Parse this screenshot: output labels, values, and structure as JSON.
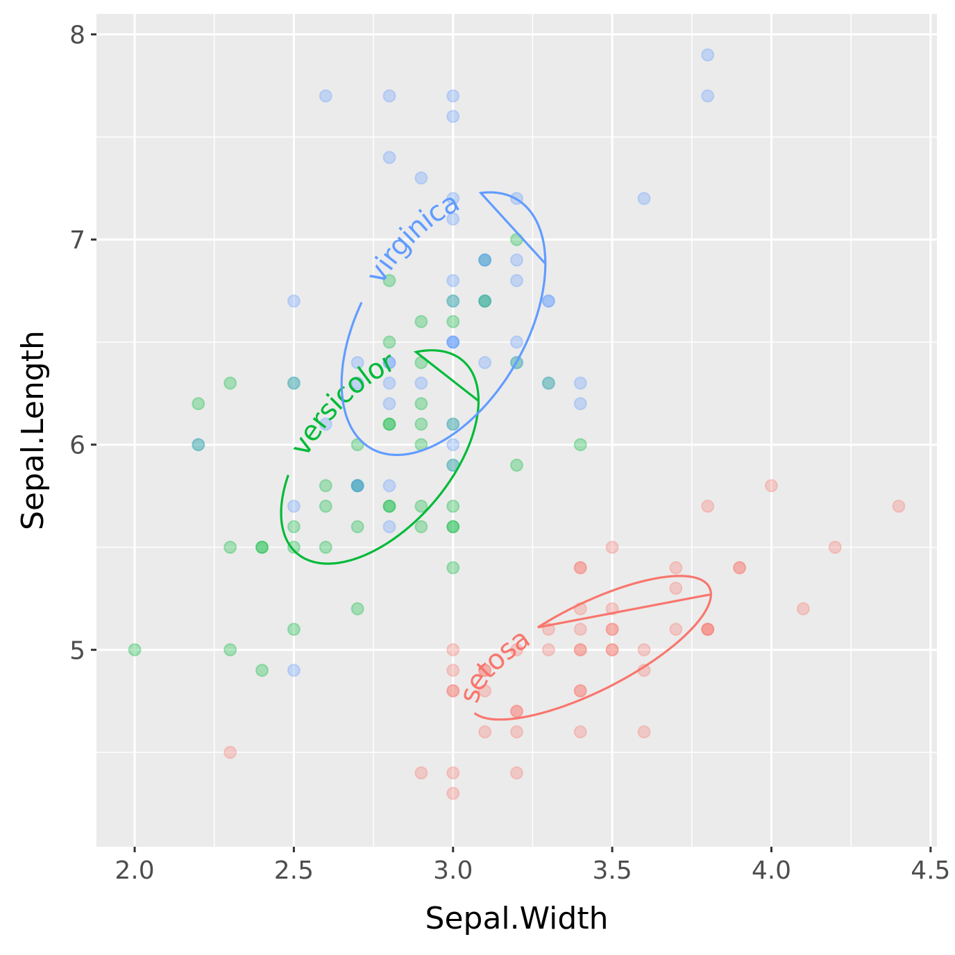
{
  "chart_data": {
    "type": "scatter",
    "xlabel": "Sepal.Width",
    "ylabel": "Sepal.Length",
    "xlim": [
      1.88,
      4.52
    ],
    "ylim": [
      4.04,
      8.1
    ],
    "x_ticks": [
      2.0,
      2.5,
      3.0,
      3.5,
      4.0,
      4.5
    ],
    "x_tick_labels": [
      "2.0",
      "2.5",
      "3.0",
      "3.5",
      "4.0",
      "4.5"
    ],
    "y_ticks": [
      5,
      6,
      7,
      8
    ],
    "y_tick_labels": [
      "5",
      "6",
      "7",
      "8"
    ],
    "grid": true,
    "legend": "none",
    "series": [
      {
        "name": "setosa",
        "color": "#F8766D",
        "label_text": "setosa",
        "ellipse": {
          "center": [
            3.43,
            5.01
          ],
          "rx": 0.38,
          "ry": 0.35,
          "r": 0.743
        },
        "points": [
          [
            3.5,
            5.1
          ],
          [
            3.0,
            4.9
          ],
          [
            3.2,
            4.7
          ],
          [
            3.1,
            4.6
          ],
          [
            3.6,
            5.0
          ],
          [
            3.9,
            5.4
          ],
          [
            3.4,
            4.6
          ],
          [
            3.4,
            5.0
          ],
          [
            2.9,
            4.4
          ],
          [
            3.1,
            4.9
          ],
          [
            3.7,
            5.4
          ],
          [
            3.4,
            4.8
          ],
          [
            3.0,
            4.8
          ],
          [
            3.0,
            4.3
          ],
          [
            4.0,
            5.8
          ],
          [
            4.4,
            5.7
          ],
          [
            3.9,
            5.4
          ],
          [
            3.5,
            5.1
          ],
          [
            3.8,
            5.7
          ],
          [
            3.8,
            5.1
          ],
          [
            3.4,
            5.4
          ],
          [
            3.7,
            5.1
          ],
          [
            3.6,
            4.6
          ],
          [
            3.3,
            5.1
          ],
          [
            3.4,
            4.8
          ],
          [
            3.0,
            5.0
          ],
          [
            3.4,
            5.0
          ],
          [
            3.5,
            5.2
          ],
          [
            3.4,
            5.2
          ],
          [
            3.2,
            4.7
          ],
          [
            3.1,
            4.8
          ],
          [
            3.4,
            5.4
          ],
          [
            4.1,
            5.2
          ],
          [
            4.2,
            5.5
          ],
          [
            3.1,
            4.9
          ],
          [
            3.2,
            5.0
          ],
          [
            3.5,
            5.5
          ],
          [
            3.6,
            4.9
          ],
          [
            3.0,
            4.4
          ],
          [
            3.4,
            5.1
          ],
          [
            3.5,
            5.0
          ],
          [
            2.3,
            4.5
          ],
          [
            3.2,
            4.4
          ],
          [
            3.5,
            5.0
          ],
          [
            3.8,
            5.1
          ],
          [
            3.0,
            4.8
          ],
          [
            3.8,
            5.1
          ],
          [
            3.2,
            4.6
          ],
          [
            3.7,
            5.3
          ],
          [
            3.3,
            5.0
          ]
        ]
      },
      {
        "name": "versicolor",
        "color": "#00BA38",
        "label_text": "versicolor",
        "ellipse": {
          "center": [
            2.77,
            5.94
          ],
          "rx": 0.31,
          "ry": 0.52,
          "r": 0.526
        },
        "points": [
          [
            3.2,
            7.0
          ],
          [
            3.2,
            6.4
          ],
          [
            3.1,
            6.9
          ],
          [
            2.3,
            5.5
          ],
          [
            2.8,
            6.5
          ],
          [
            2.8,
            5.7
          ],
          [
            3.3,
            6.3
          ],
          [
            2.4,
            4.9
          ],
          [
            2.9,
            6.6
          ],
          [
            2.7,
            5.2
          ],
          [
            2.0,
            5.0
          ],
          [
            3.0,
            5.9
          ],
          [
            2.2,
            6.0
          ],
          [
            2.9,
            6.1
          ],
          [
            2.9,
            5.6
          ],
          [
            3.1,
            6.7
          ],
          [
            3.0,
            5.6
          ],
          [
            2.7,
            5.8
          ],
          [
            2.2,
            6.2
          ],
          [
            2.5,
            5.6
          ],
          [
            3.2,
            5.9
          ],
          [
            2.8,
            6.1
          ],
          [
            2.5,
            6.3
          ],
          [
            2.8,
            6.1
          ],
          [
            2.9,
            6.4
          ],
          [
            3.0,
            6.6
          ],
          [
            2.8,
            6.8
          ],
          [
            3.0,
            6.7
          ],
          [
            2.9,
            6.0
          ],
          [
            2.6,
            5.7
          ],
          [
            2.4,
            5.5
          ],
          [
            2.4,
            5.5
          ],
          [
            2.7,
            5.8
          ],
          [
            2.7,
            6.0
          ],
          [
            3.0,
            5.4
          ],
          [
            3.4,
            6.0
          ],
          [
            3.1,
            6.7
          ],
          [
            2.3,
            6.3
          ],
          [
            3.0,
            5.6
          ],
          [
            2.5,
            5.5
          ],
          [
            2.6,
            5.5
          ],
          [
            3.0,
            6.1
          ],
          [
            2.6,
            5.8
          ],
          [
            2.3,
            5.0
          ],
          [
            2.7,
            5.6
          ],
          [
            3.0,
            5.7
          ],
          [
            2.9,
            5.7
          ],
          [
            2.9,
            6.2
          ],
          [
            2.5,
            5.1
          ],
          [
            2.8,
            5.7
          ]
        ]
      },
      {
        "name": "virginica",
        "color": "#619CFF",
        "label_text": "virginica",
        "ellipse": {
          "center": [
            2.97,
            6.59
          ],
          "rx": 0.32,
          "ry": 0.64,
          "r": 0.457
        },
        "points": [
          [
            3.3,
            6.3
          ],
          [
            2.7,
            5.8
          ],
          [
            3.0,
            7.1
          ],
          [
            2.9,
            6.3
          ],
          [
            3.0,
            6.5
          ],
          [
            3.0,
            7.6
          ],
          [
            2.5,
            4.9
          ],
          [
            2.9,
            7.3
          ],
          [
            2.5,
            6.7
          ],
          [
            3.6,
            7.2
          ],
          [
            3.2,
            6.5
          ],
          [
            2.7,
            6.4
          ],
          [
            3.0,
            6.8
          ],
          [
            2.5,
            5.7
          ],
          [
            2.8,
            5.8
          ],
          [
            3.2,
            6.4
          ],
          [
            3.0,
            6.5
          ],
          [
            3.8,
            7.7
          ],
          [
            2.6,
            7.7
          ],
          [
            2.2,
            6.0
          ],
          [
            3.2,
            6.9
          ],
          [
            2.8,
            5.6
          ],
          [
            2.8,
            7.7
          ],
          [
            2.7,
            6.3
          ],
          [
            3.3,
            6.7
          ],
          [
            3.2,
            7.2
          ],
          [
            2.8,
            6.2
          ],
          [
            3.0,
            6.1
          ],
          [
            2.8,
            6.4
          ],
          [
            3.0,
            7.2
          ],
          [
            2.8,
            7.4
          ],
          [
            3.8,
            7.9
          ],
          [
            2.8,
            6.4
          ],
          [
            2.8,
            6.3
          ],
          [
            2.6,
            6.1
          ],
          [
            3.0,
            7.7
          ],
          [
            3.4,
            6.3
          ],
          [
            3.1,
            6.4
          ],
          [
            3.0,
            6.0
          ],
          [
            3.1,
            6.9
          ],
          [
            3.1,
            6.7
          ],
          [
            3.1,
            6.9
          ],
          [
            2.7,
            5.8
          ],
          [
            3.2,
            6.8
          ],
          [
            3.3,
            6.7
          ],
          [
            3.0,
            6.7
          ],
          [
            2.5,
            6.3
          ],
          [
            3.0,
            6.5
          ],
          [
            3.4,
            6.2
          ],
          [
            3.0,
            5.9
          ]
        ]
      }
    ]
  }
}
